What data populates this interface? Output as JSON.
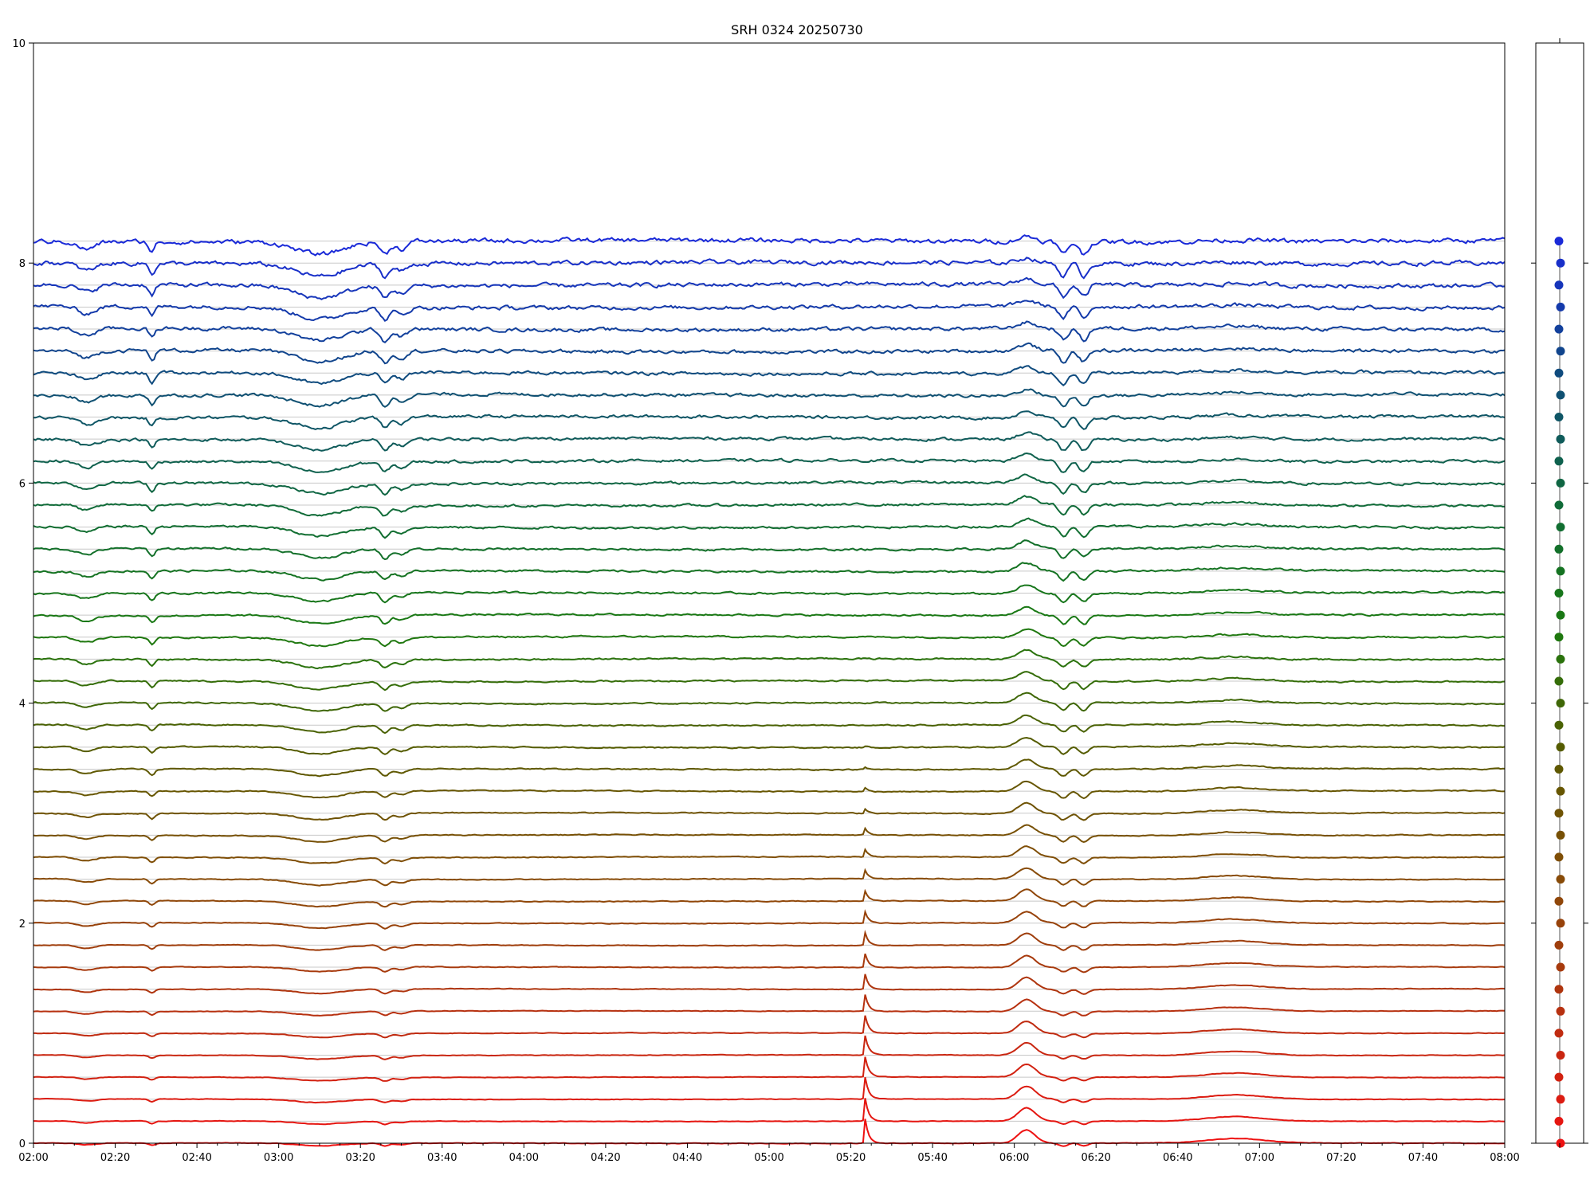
{
  "chart_data": {
    "type": "line",
    "title": "SRH 0324 20250730",
    "xlabel": "",
    "ylabel": "",
    "xlim": [
      "02:00",
      "08:00"
    ],
    "ylim": [
      0,
      10
    ],
    "x_ticks": [
      "02:00",
      "02:20",
      "02:40",
      "03:00",
      "03:20",
      "03:40",
      "04:00",
      "04:20",
      "04:40",
      "05:00",
      "05:20",
      "05:40",
      "06:00",
      "06:20",
      "06:40",
      "07:00",
      "07:20",
      "07:40",
      "08:00"
    ],
    "y_ticks": [
      "0",
      "2",
      "4",
      "6",
      "8",
      "10"
    ],
    "grid": "horizontal lines at each trace baseline",
    "series_count": 42,
    "series_offset_step": 0.2,
    "series_baselines": [
      0,
      0.2,
      0.4,
      0.6,
      0.8,
      1.0,
      1.2,
      1.4,
      1.6,
      1.8,
      2.0,
      2.2,
      2.4,
      2.6,
      2.8,
      3.0,
      3.2,
      3.4,
      3.6,
      3.8,
      4.0,
      4.2,
      4.4,
      4.6,
      4.8,
      5.0,
      5.2,
      5.4,
      5.6,
      5.8,
      6.0,
      6.2,
      6.4,
      6.6,
      6.8,
      7.0,
      7.2,
      7.4,
      7.6,
      7.8,
      8.0,
      8.2
    ],
    "color_gradient": [
      "#ee1111",
      "#b83010",
      "#8a4a08",
      "#5a5a00",
      "#1a7a10",
      "#0f6a3a",
      "#0f4a80",
      "#1a2ad8"
    ],
    "events": [
      {
        "time": "02:13",
        "amplitude": -0.06,
        "width_min": 3
      },
      {
        "time": "02:29",
        "amplitude": -0.08,
        "width_min": 1
      },
      {
        "time": "03:10",
        "amplitude": -0.1,
        "width_min": 8
      },
      {
        "time": "03:26",
        "amplitude": -0.1,
        "width_min": 1.5
      },
      {
        "time": "03:30",
        "amplitude": -0.06,
        "width_min": 2
      },
      {
        "time": "05:23.5",
        "amplitude": 0.22,
        "width_min": 0.8
      },
      {
        "time": "06:03",
        "amplitude": 0.12,
        "width_min": 3
      },
      {
        "time": "06:12",
        "amplitude": -0.1,
        "width_min": 1.5
      },
      {
        "time": "06:17",
        "amplitude": -0.1,
        "width_min": 1.5
      },
      {
        "time": "06:54",
        "amplitude": 0.04,
        "width_min": 10
      }
    ],
    "legend": "right-side strip: one colored dot per series"
  }
}
